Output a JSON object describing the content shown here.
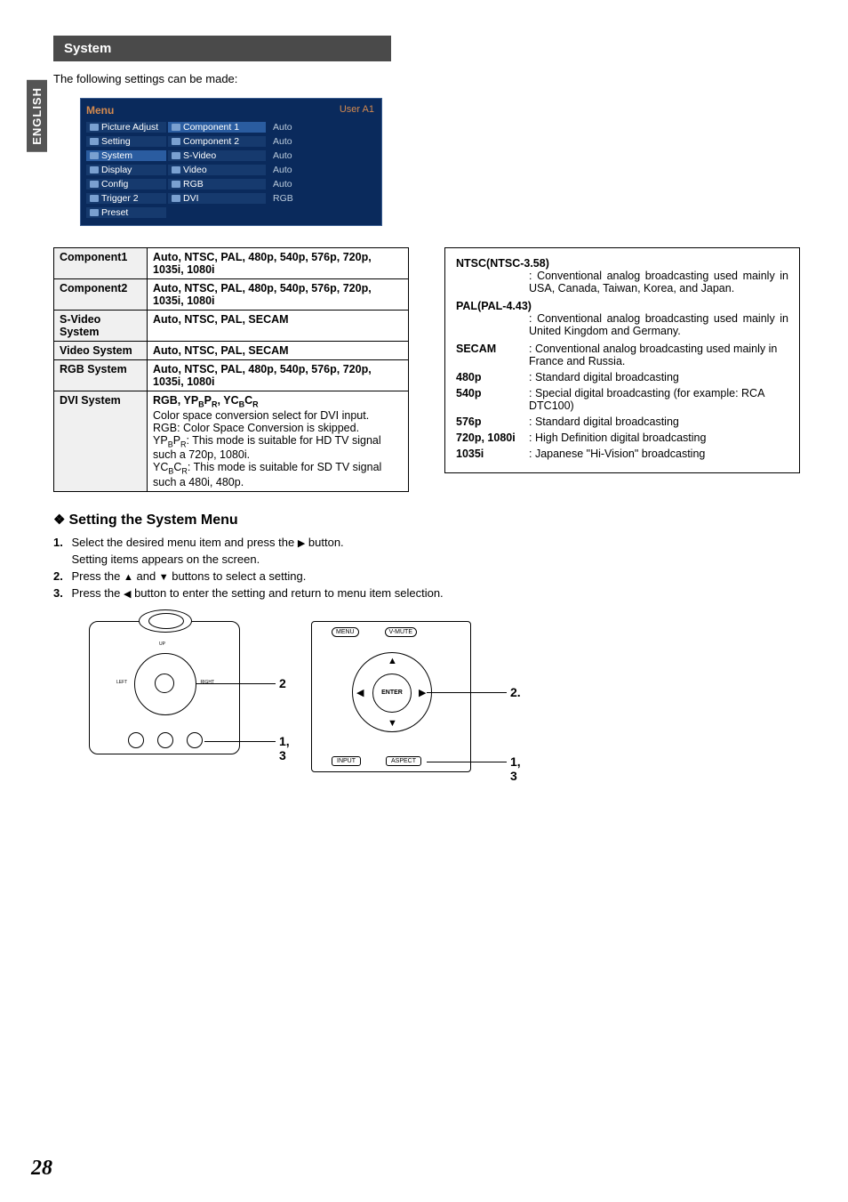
{
  "lang_tab": "ENGLISH",
  "section_title": "System",
  "intro": "The following settings can be made:",
  "menu": {
    "title": "Menu",
    "user": "User A1",
    "left_items": [
      "Picture Adjust",
      "Setting",
      "System",
      "Display",
      "Config",
      "Trigger 2",
      "Preset"
    ],
    "left_selected_index": 2,
    "mid_items": [
      "Component 1",
      "Component 2",
      "S-Video",
      "Video",
      "RGB",
      "DVI"
    ],
    "mid_selected_index": 0,
    "right_values": [
      "Auto",
      "Auto",
      "Auto",
      "Auto",
      "Auto",
      "RGB"
    ]
  },
  "spec_rows": [
    {
      "label": "Component1",
      "value": "Auto, NTSC, PAL, 480p, 540p, 576p, 720p, 1035i, 1080i"
    },
    {
      "label": "Component2",
      "value": "Auto, NTSC, PAL, 480p, 540p, 576p, 720p, 1035i, 1080i"
    },
    {
      "label": "S-Video System",
      "value": "Auto, NTSC, PAL, SECAM"
    },
    {
      "label": "Video System",
      "value": "Auto, NTSC, PAL, SECAM"
    },
    {
      "label": "RGB System",
      "value": "Auto, NTSC, PAL, 480p, 540p, 576p, 720p, 1035i, 1080i"
    }
  ],
  "dvi_row": {
    "label": "DVI System",
    "head": "RGB, YPBPR, YCBCR",
    "lines": [
      "Color space conversion select for DVI input.",
      "RGB: Color Space Conversion is skipped.",
      "YPBPR: This mode is suitable for HD TV signal such a 720p, 1080i.",
      "YCBCR: This mode is suitable for SD TV signal such a 480i, 480p."
    ]
  },
  "glossary_blocks": [
    {
      "label": "NTSC(NTSC-3.58)",
      "desc": "Conventional analog broadcasting used mainly in USA, Canada, Taiwan, Korea, and Japan."
    },
    {
      "label": "PAL(PAL-4.43)",
      "desc": "Conventional analog broadcasting used mainly in United Kingdom and Germany."
    }
  ],
  "glossary_rows": [
    {
      "label": "SECAM",
      "desc": "Conventional analog broadcasting used mainly in France and Russia."
    },
    {
      "label": "480p",
      "desc": "Standard digital broadcasting"
    },
    {
      "label": "540p",
      "desc": "Special digital broadcasting (for example: RCA DTC100)"
    },
    {
      "label": "576p",
      "desc": "Standard digital broadcasting"
    },
    {
      "label": "720p, 1080i",
      "desc": "High Definition digital broadcasting"
    },
    {
      "label": "1035i",
      "desc": "Japanese \"Hi-Vision\" broadcasting"
    }
  ],
  "subheading": "Setting the System Menu",
  "steps": [
    {
      "n": "1.",
      "text_a": "Select the desired menu item and press the ",
      "sym": "▶",
      "text_b": " button.",
      "extra": "Setting items appears on the screen."
    },
    {
      "n": "2.",
      "text_a": "Press the ",
      "sym": "▲",
      "mid": " and ",
      "sym2": "▼",
      "text_b": " buttons to select a setting."
    },
    {
      "n": "3.",
      "text_a": "Press the ",
      "sym": "◀",
      "text_b": " button to enter the setting and return to menu item selection."
    }
  ],
  "remote": {
    "menu": "MENU",
    "vmute": "V-MUTE",
    "enter": "ENTER",
    "input": "INPUT",
    "aspect": "ASPECT"
  },
  "call": {
    "c2": "2",
    "c13": "1, 3",
    "c2b": "2.",
    "c13b": "1, 3"
  },
  "proj_labels": {
    "up": "UP",
    "left": "LEFT",
    "right": "RIGHT"
  },
  "page_number": "28"
}
